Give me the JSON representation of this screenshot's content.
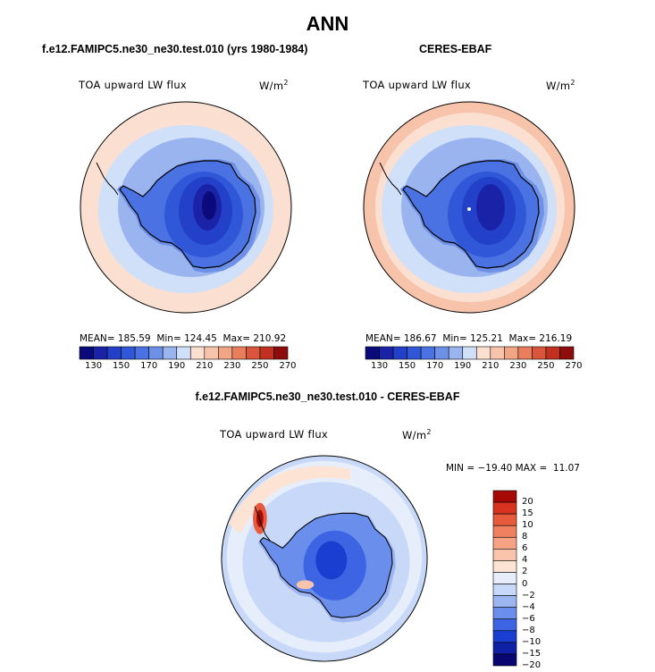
{
  "title": "ANN",
  "colors": {
    "abs_palette": [
      "#0a0a7a",
      "#1a23a8",
      "#2340c8",
      "#3057d8",
      "#4a72e3",
      "#6d90e8",
      "#9ab4f0",
      "#cfe0f8",
      "#fbe0d1",
      "#f7c3aa",
      "#f2a585",
      "#e97d5c",
      "#d9553b",
      "#c23020",
      "#8f0c0c"
    ],
    "diff_palette": [
      "#07076f",
      "#0f1fa6",
      "#1a3fd0",
      "#3d64e2",
      "#6a8eec",
      "#9db6f3",
      "#c8d8f8",
      "#e6eefb",
      "#fde3d3",
      "#f9c4ab",
      "#f5a384",
      "#ef8160",
      "#e75a3c",
      "#d73320",
      "#a70a06"
    ]
  },
  "panels": [
    {
      "subtitle": "f.e12.FAMIPC5.ne30_ne30.test.010 (yrs 1980-1984)",
      "variable": "TOA upward LW flux",
      "units": "W/m",
      "units_exp": "2",
      "stats": {
        "mean_label": "MEAN=",
        "mean": "185.59",
        "min_label": "Min=",
        "min": "124.45",
        "max_label": "Max=",
        "max": "210.92"
      },
      "colorbar_ticks": [
        "130",
        "150",
        "170",
        "190",
        "210",
        "230",
        "250",
        "270"
      ]
    },
    {
      "subtitle": "CERES-EBAF",
      "variable": "TOA upward LW flux",
      "units": "W/m",
      "units_exp": "2",
      "stats": {
        "mean_label": "MEAN=",
        "mean": "186.67",
        "min_label": "Min=",
        "min": "125.21",
        "max_label": "Max=",
        "max": "216.19"
      },
      "colorbar_ticks": [
        "130",
        "150",
        "170",
        "190",
        "210",
        "230",
        "250",
        "270"
      ]
    }
  ],
  "diff_panel": {
    "subtitle": "f.e12.FAMIPC5.ne30_ne30.test.010 - CERES-EBAF",
    "variable": "TOA upward LW flux",
    "units": "W/m",
    "units_exp": "2",
    "minmax": "MIN = −19.40 MAX =  11.07",
    "colorbar_ticks": [
      "20",
      "15",
      "10",
      "8",
      "6",
      "4",
      "2",
      "0",
      "−2",
      "−4",
      "−6",
      "−8",
      "−10",
      "−15",
      "−20"
    ]
  }
}
